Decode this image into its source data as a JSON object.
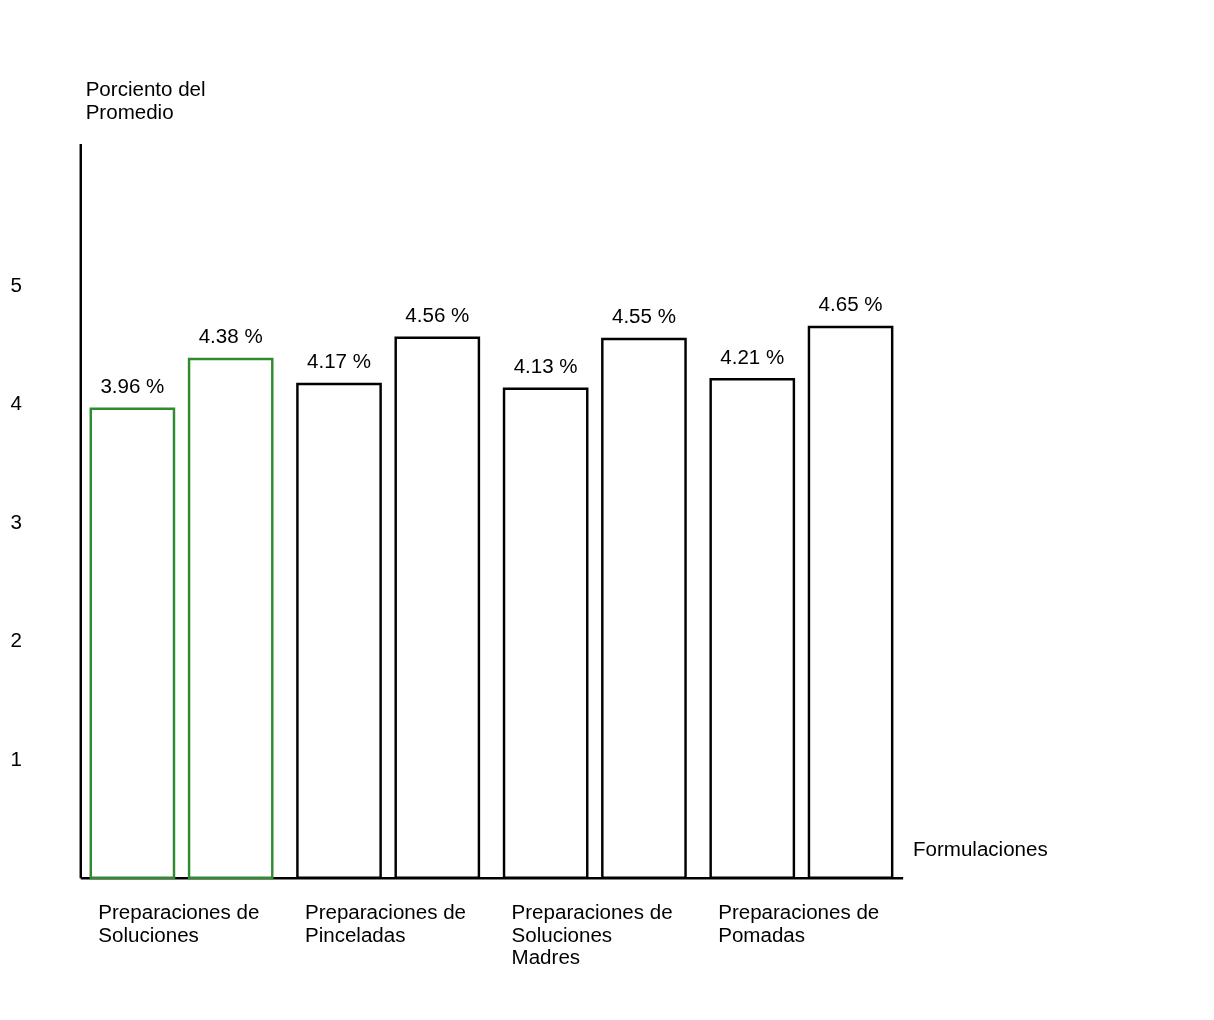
{
  "chart_data": {
    "type": "bar",
    "xlabel": "Formulaciones",
    "ylabel": "Porciento del Promedio",
    "categories": [
      "Preparaciones de Soluciones",
      "Preparaciones de Pinceladas",
      "Preparaciones de Soluciones Madres",
      "Preparaciones de Pomadas"
    ],
    "series": [
      {
        "colors": [
          "#2e8b2e",
          "#000000",
          "#000000",
          "#000000"
        ],
        "values": [
          3.96,
          4.17,
          4.13,
          4.21
        ],
        "value_labels": [
          "3.96 %",
          "4.17 %",
          "4.13 %",
          "4.21 %"
        ]
      },
      {
        "colors": [
          "#2e8b2e",
          "#000000",
          "#000000",
          "#000000"
        ],
        "values": [
          4.38,
          4.56,
          4.55,
          4.65
        ],
        "value_labels": [
          "4.38 %",
          "4.56 %",
          "4.55 %",
          "4.65 %"
        ]
      }
    ],
    "ylim": [
      0,
      6.2
    ],
    "yticks": [
      1,
      2,
      3,
      4,
      5
    ],
    "grid": false
  }
}
